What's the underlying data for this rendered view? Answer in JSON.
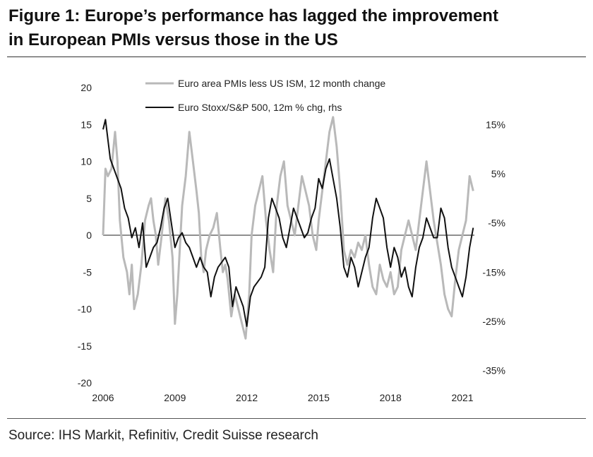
{
  "title_line1": "Figure 1: Europe’s performance has lagged the improvement",
  "title_line2": "in European PMIs versus those in the US",
  "source": "Source: IHS Markit, Refinitiv, Credit Suisse research",
  "colors": {
    "pmi": "#b9b9b9",
    "stoxx": "#111111",
    "zero": "#8f8f8f"
  },
  "chart_data": {
    "type": "line",
    "title": "Figure 1: Europe’s performance has lagged the improvement in European PMIs versus those in the US",
    "x_ticks": [
      "2006",
      "2009",
      "2012",
      "2015",
      "2018",
      "2021"
    ],
    "x_range": [
      2006.0,
      2021.5
    ],
    "y_left": {
      "ticks": [
        "20",
        "15",
        "10",
        "5",
        "0",
        "-5",
        "-10",
        "-15",
        "-20"
      ],
      "ylim": [
        -20,
        20
      ]
    },
    "y_right": {
      "ticks": [
        "15%",
        "5%",
        "-5%",
        "-15%",
        "-25%",
        "-35%"
      ],
      "ylim": [
        -37.5,
        22.5
      ]
    },
    "grid": false,
    "legend_position": "top",
    "series": [
      {
        "name": "Euro area PMIs less US ISM, 12 month change",
        "axis": "left",
        "x": [
          2006.0,
          2006.1,
          2006.2,
          2006.35,
          2006.5,
          2006.6,
          2006.7,
          2006.85,
          2007.0,
          2007.1,
          2007.2,
          2007.3,
          2007.45,
          2007.6,
          2007.75,
          2007.9,
          2008.0,
          2008.1,
          2008.2,
          2008.3,
          2008.45,
          2008.6,
          2008.75,
          2008.9,
          2009.0,
          2009.1,
          2009.2,
          2009.3,
          2009.45,
          2009.6,
          2009.75,
          2009.9,
          2010.0,
          2010.1,
          2010.2,
          2010.3,
          2010.45,
          2010.6,
          2010.75,
          2010.9,
          2011.0,
          2011.1,
          2011.2,
          2011.35,
          2011.5,
          2011.65,
          2011.8,
          2011.95,
          2012.1,
          2012.2,
          2012.35,
          2012.5,
          2012.65,
          2012.8,
          2012.95,
          2013.1,
          2013.25,
          2013.4,
          2013.55,
          2013.7,
          2013.85,
          2014.0,
          2014.15,
          2014.3,
          2014.45,
          2014.6,
          2014.75,
          2014.9,
          2015.0,
          2015.15,
          2015.3,
          2015.45,
          2015.6,
          2015.75,
          2015.9,
          2016.05,
          2016.2,
          2016.35,
          2016.5,
          2016.65,
          2016.8,
          2016.95,
          2017.1,
          2017.25,
          2017.4,
          2017.55,
          2017.7,
          2017.85,
          2018.0,
          2018.15,
          2018.3,
          2018.45,
          2018.6,
          2018.75,
          2018.9,
          2019.05,
          2019.2,
          2019.35,
          2019.5,
          2019.65,
          2019.8,
          2019.95,
          2020.1,
          2020.25,
          2020.4,
          2020.55,
          2020.7,
          2020.85,
          2021.0,
          2021.15,
          2021.3,
          2021.45
        ],
        "values": [
          0,
          9,
          8,
          9,
          14,
          10,
          2,
          -3,
          -5,
          -8,
          -4,
          -10,
          -8,
          -4,
          2,
          4,
          5,
          2,
          0,
          -4,
          0,
          5,
          2,
          -3,
          -12,
          -8,
          -2,
          4,
          8,
          14,
          10,
          6,
          3,
          -3,
          -5,
          -2,
          0,
          1,
          3,
          -2,
          -5,
          -4,
          -6,
          -11,
          -8,
          -10,
          -12,
          -14,
          -8,
          0,
          4,
          6,
          8,
          2,
          -2,
          -5,
          4,
          8,
          10,
          4,
          2,
          0,
          4,
          8,
          6,
          4,
          0,
          -2,
          2,
          6,
          10,
          14,
          16,
          12,
          6,
          -2,
          -4,
          -2,
          -3,
          -1,
          -2,
          0,
          -4,
          -7,
          -8,
          -4,
          -6,
          -7,
          -5,
          -8,
          -7,
          -2,
          0,
          2,
          0,
          -2,
          2,
          6,
          10,
          6,
          2,
          -1,
          -4,
          -8,
          -10,
          -11,
          -6,
          -2,
          0,
          2,
          8,
          6
        ]
      },
      {
        "name": "Euro Stoxx/S&P 500, 12m % chg, rhs",
        "axis": "right",
        "x": [
          2006.0,
          2006.1,
          2006.2,
          2006.3,
          2006.45,
          2006.6,
          2006.75,
          2006.9,
          2007.05,
          2007.2,
          2007.35,
          2007.5,
          2007.65,
          2007.8,
          2007.95,
          2008.1,
          2008.25,
          2008.4,
          2008.55,
          2008.7,
          2008.85,
          2009.0,
          2009.15,
          2009.3,
          2009.45,
          2009.6,
          2009.75,
          2009.9,
          2010.05,
          2010.2,
          2010.35,
          2010.5,
          2010.65,
          2010.8,
          2010.95,
          2011.1,
          2011.25,
          2011.4,
          2011.55,
          2011.7,
          2011.85,
          2012.0,
          2012.15,
          2012.3,
          2012.45,
          2012.6,
          2012.75,
          2012.9,
          2013.05,
          2013.2,
          2013.35,
          2013.5,
          2013.65,
          2013.8,
          2013.95,
          2014.1,
          2014.25,
          2014.4,
          2014.55,
          2014.7,
          2014.85,
          2015.0,
          2015.15,
          2015.3,
          2015.45,
          2015.6,
          2015.75,
          2015.9,
          2016.05,
          2016.2,
          2016.35,
          2016.5,
          2016.65,
          2016.8,
          2016.95,
          2017.1,
          2017.25,
          2017.4,
          2017.55,
          2017.7,
          2017.85,
          2018.0,
          2018.15,
          2018.3,
          2018.45,
          2018.6,
          2018.75,
          2018.9,
          2019.05,
          2019.2,
          2019.35,
          2019.5,
          2019.65,
          2019.8,
          2019.95,
          2020.1,
          2020.25,
          2020.4,
          2020.55,
          2020.7,
          2020.85,
          2021.0,
          2021.15,
          2021.3,
          2021.45
        ],
        "values": [
          14,
          16,
          12,
          8,
          6,
          4,
          2,
          -2,
          -4,
          -8,
          -6,
          -10,
          -5,
          -14,
          -12,
          -10,
          -9,
          -6,
          -2,
          0,
          -5,
          -10,
          -8,
          -7,
          -9,
          -10,
          -12,
          -14,
          -12,
          -14,
          -15,
          -20,
          -16,
          -14,
          -13,
          -12,
          -14,
          -22,
          -18,
          -20,
          -22,
          -26,
          -20,
          -18,
          -17,
          -16,
          -14,
          -4,
          0,
          -2,
          -4,
          -8,
          -10,
          -6,
          -2,
          -4,
          -6,
          -8,
          -7,
          -4,
          -2,
          4,
          2,
          6,
          8,
          4,
          0,
          -6,
          -14,
          -16,
          -12,
          -14,
          -18,
          -15,
          -12,
          -10,
          -4,
          0,
          -2,
          -4,
          -10,
          -14,
          -10,
          -12,
          -16,
          -14,
          -18,
          -20,
          -14,
          -10,
          -8,
          -4,
          -6,
          -8,
          -8,
          -2,
          -4,
          -10,
          -14,
          -16,
          -18,
          -20,
          -16,
          -10,
          -6
        ]
      }
    ]
  }
}
